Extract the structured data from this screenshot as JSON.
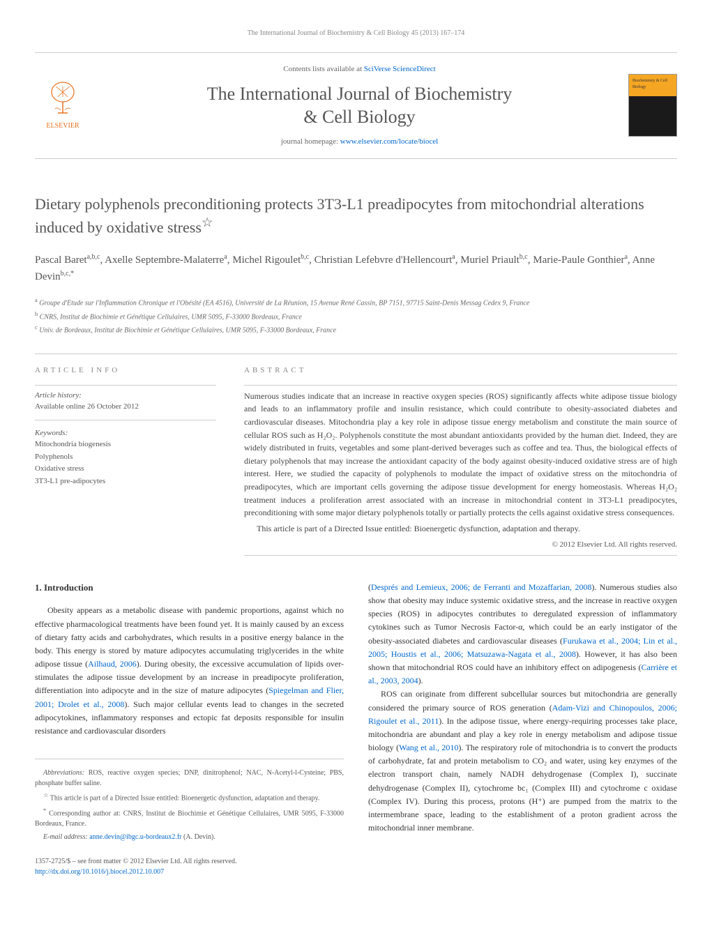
{
  "running_head": "The International Journal of Biochemistry & Cell Biology 45 (2013) 167–174",
  "header": {
    "contents_prefix": "Contents lists available at ",
    "contents_link": "SciVerse ScienceDirect",
    "journal_name_line1": "The International Journal of Biochemistry",
    "journal_name_line2": "& Cell Biology",
    "homepage_prefix": "journal homepage: ",
    "homepage_link": "www.elsevier.com/locate/biocel",
    "elsevier_label": "ELSEVIER",
    "thumb_label": "Biochemistry & Cell Biology"
  },
  "title": "Dietary polyphenols preconditioning protects 3T3-L1 preadipocytes from mitochondrial alterations induced by oxidative stress",
  "title_footnote_marker": "☆",
  "authors_html": "Pascal Baret<sup>a,b,c</sup>, Axelle Septembre-Malaterre<sup>a</sup>, Michel Rigoulet<sup>b,c</sup>, Christian Lefebvre d'Hellencourt<sup>a</sup>, Muriel Priault<sup>b,c</sup>, Marie-Paule Gonthier<sup>a</sup>, Anne Devin<sup>b,c,*</sup>",
  "affiliations": {
    "a": "Groupe d'Etude sur l'Inflammation Chronique et l'Obésité (EA 4516), Université de La Réunion, 15 Avenue René Cassin, BP 7151, 97715 Saint-Denis Messag Cedex 9, France",
    "b": "CNRS, Institut de Biochimie et Génétique Cellulaires, UMR 5095, F-33000 Bordeaux, France",
    "c": "Univ. de Bordeaux, Institut de Biochimie et Génétique Cellulaires, UMR 5095, F-33000 Bordeaux, France"
  },
  "article_info": {
    "heading": "ARTICLE INFO",
    "history_label": "Article history:",
    "history_value": "Available online 26 October 2012",
    "keywords_label": "Keywords:",
    "keywords": [
      "Mitochondria biogenesis",
      "Polyphenols",
      "Oxidative stress",
      "3T3-L1 pre-adipocytes"
    ]
  },
  "abstract": {
    "heading": "ABSTRACT",
    "paragraphs": [
      "Numerous studies indicate that an increase in reactive oxygen species (ROS) significantly affects white adipose tissue biology and leads to an inflammatory profile and insulin resistance, which could contribute to obesity-associated diabetes and cardiovascular diseases. Mitochondria play a key role in adipose tissue energy metabolism and constitute the main source of cellular ROS such as H₂O₂. Polyphenols constitute the most abundant antioxidants provided by the human diet. Indeed, they are widely distributed in fruits, vegetables and some plant-derived beverages such as coffee and tea. Thus, the biological effects of dietary polyphenols that may increase the antioxidant capacity of the body against obesity-induced oxidative stress are of high interest. Here, we studied the capacity of polyphenols to modulate the impact of oxidative stress on the mitochondria of preadipocytes, which are important cells governing the adipose tissue development for energy homeostasis. Whereas H₂O₂ treatment induces a proliferation arrest associated with an increase in mitochondrial content in 3T3-L1 preadipocytes, preconditioning with some major dietary polyphenols totally or partially protects the cells against oxidative stress consequences.",
      "This article is part of a Directed Issue entitled: Bioenergetic dysfunction, adaptation and therapy."
    ],
    "copyright": "© 2012 Elsevier Ltd. All rights reserved."
  },
  "body": {
    "intro_heading": "1. Introduction",
    "col1_p1": "Obesity appears as a metabolic disease with pandemic proportions, against which no effective pharmacological treatments have been found yet. It is mainly caused by an excess of dietary fatty acids and carbohydrates, which results in a positive energy balance in the body. This energy is stored by mature adipocytes accumulating triglycerides in the white adipose tissue (Ailhaud, 2006). During obesity, the excessive accumulation of lipids over-stimulates the adipose tissue development by an increase in preadipocyte proliferation, differentiation into adipocyte and in the size of mature adipocytes (Spiegelman and Flier, 2001; Drolet et al., 2008). Such major cellular events lead to changes in the secreted adipocytokines, inflammatory responses and ectopic fat deposits responsible for insulin resistance and cardiovascular disorders",
    "col2_p1": "(Després and Lemieux, 2006; de Ferranti and Mozaffarian, 2008). Numerous studies also show that obesity may induce systemic oxidative stress, and the increase in reactive oxygen species (ROS) in adipocytes contributes to deregulated expression of inflammatory cytokines such as Tumor Necrosis Factor-α, which could be an early instigator of the obesity-associated diabetes and cardiovascular diseases (Furukawa et al., 2004; Lin et al., 2005; Houstis et al., 2006; Matsuzawa-Nagata et al., 2008). However, it has also been shown that mitochondrial ROS could have an inhibitory effect on adipogenesis (Carrière et al., 2003, 2004).",
    "col2_p2": "ROS can originate from different subcellular sources but mitochondria are generally considered the primary source of ROS generation (Adam-Vizi and Chinopoulos, 2006; Rigoulet et al., 2011). In the adipose tissue, where energy-requiring processes take place, mitochondria are abundant and play a key role in energy metabolism and adipose tissue biology (Wang et al., 2010). The respiratory role of mitochondria is to convert the products of carbohydrate, fat and protein metabolism to CO₂ and water, using key enzymes of the electron transport chain, namely NADH dehydrogenase (Complex I), succinate dehydrogenase (Complex II), cytochrome bc₁ (Complex III) and cytochrome c oxidase (Complex IV). During this process, protons (H⁺) are pumped from the matrix to the intermembrane space, leading to the establishment of a proton gradient across the mitochondrial inner membrane."
  },
  "footnotes": {
    "abbrev_label": "Abbreviations:",
    "abbrev_value": "ROS, reactive oxygen species; DNP, dinitrophenol; NAC, N-Acetyl-l-Cysteine; PBS, phosphate buffer saline.",
    "star": "This article is part of a Directed Issue entitled: Bioenergetic dysfunction, adaptation and therapy.",
    "corresponding": "Corresponding author at: CNRS, Institut de Biochimie et Génétique Cellulaires, UMR 5095, F-33000 Bordeaux, France.",
    "email_label": "E-mail address:",
    "email_value": "anne.devin@ibgc.u-bordeaux2.fr",
    "email_suffix": "(A. Devin)."
  },
  "bottom": {
    "issn": "1357-2725/$ – see front matter © 2012 Elsevier Ltd. All rights reserved.",
    "doi": "http://dx.doi.org/10.1016/j.biocel.2012.10.007"
  },
  "colors": {
    "link": "#0066cc",
    "elsevier_orange": "#e9711c",
    "heading_gray": "#545454",
    "rule": "#cccccc"
  }
}
